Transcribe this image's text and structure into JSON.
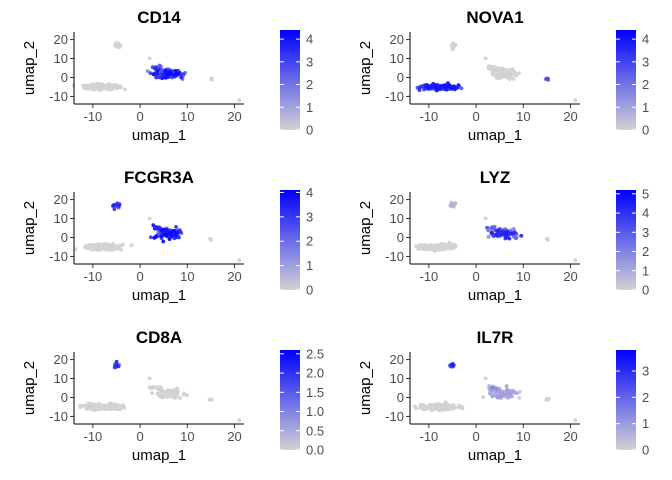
{
  "figure": {
    "panels": [
      {
        "gene": "CD14",
        "xlabel": "umap_1",
        "ylabel": "umap_2",
        "legend_ticks": [
          "0",
          "1",
          "2",
          "3",
          "4"
        ]
      },
      {
        "gene": "NOVA1",
        "xlabel": "umap_1",
        "ylabel": "umap_2",
        "legend_ticks": [
          "0",
          "1",
          "2",
          "3",
          "4"
        ]
      },
      {
        "gene": "FCGR3A",
        "xlabel": "umap_1",
        "ylabel": "umap_2",
        "legend_ticks": [
          "0",
          "1",
          "2",
          "3",
          "4"
        ]
      },
      {
        "gene": "LYZ",
        "xlabel": "umap_1",
        "ylabel": "umap_2",
        "legend_ticks": [
          "0",
          "1",
          "2",
          "3",
          "4",
          "5"
        ]
      },
      {
        "gene": "CD8A",
        "xlabel": "umap_1",
        "ylabel": "umap_2",
        "legend_ticks": [
          "0.0",
          "0.5",
          "1.0",
          "1.5",
          "2.0",
          "2.5"
        ]
      },
      {
        "gene": "IL7R",
        "xlabel": "umap_1",
        "ylabel": "umap_2",
        "legend_ticks": [
          "0",
          "1",
          "2",
          "3"
        ]
      }
    ]
  },
  "chart_data": [
    {
      "type": "scatter",
      "title": "CD14",
      "xlabel": "umap_1",
      "ylabel": "umap_2",
      "xticks": [
        -10,
        0,
        10,
        20
      ],
      "yticks": [
        -10,
        0,
        10,
        20
      ],
      "xlim": [
        -14,
        22
      ],
      "ylim": [
        -14,
        24
      ],
      "color_scale": {
        "low": "#d3d3d3",
        "high": "#0000ff",
        "min": 0,
        "max": 4.4,
        "ticks": [
          0,
          1,
          2,
          3,
          4
        ]
      },
      "clusters": [
        {
          "x": -8,
          "y": -5,
          "sx": 3.2,
          "sy": 1.2,
          "n": 220,
          "expression": [
            0,
            0
          ]
        },
        {
          "x": -5,
          "y": 17,
          "sx": 0.6,
          "sy": 1.3,
          "n": 14,
          "expression": [
            0,
            0
          ]
        },
        {
          "x": 6,
          "y": 2,
          "sx": 2.4,
          "sy": 2.0,
          "n": 110,
          "expression": [
            1.5,
            4.2
          ]
        },
        {
          "x": 3.5,
          "y": 5,
          "sx": 1.0,
          "sy": 0.8,
          "n": 16,
          "expression": [
            2.0,
            3.5
          ]
        },
        {
          "x": 15,
          "y": -1,
          "sx": 0.3,
          "sy": 0.5,
          "n": 5,
          "expression": [
            0,
            0
          ]
        }
      ],
      "outliers": [
        {
          "x": 2,
          "y": 10
        },
        {
          "x": 21,
          "y": -12
        }
      ]
    },
    {
      "type": "scatter",
      "title": "NOVA1",
      "xlabel": "umap_1",
      "ylabel": "umap_2",
      "xticks": [
        -10,
        0,
        10,
        20
      ],
      "yticks": [
        -10,
        0,
        10,
        20
      ],
      "xlim": [
        -14,
        22
      ],
      "ylim": [
        -14,
        24
      ],
      "color_scale": {
        "low": "#d3d3d3",
        "high": "#0000ff",
        "min": 0,
        "max": 4.4,
        "ticks": [
          0,
          1,
          2,
          3,
          4
        ]
      },
      "clusters": [
        {
          "x": -8,
          "y": -5,
          "sx": 3.2,
          "sy": 1.2,
          "n": 220,
          "expression": [
            2.0,
            4.0
          ]
        },
        {
          "x": -5,
          "y": 17,
          "sx": 0.6,
          "sy": 1.3,
          "n": 14,
          "expression": [
            0,
            0
          ]
        },
        {
          "x": 6,
          "y": 2,
          "sx": 2.4,
          "sy": 2.0,
          "n": 110,
          "expression": [
            0,
            0
          ]
        },
        {
          "x": 3.5,
          "y": 5,
          "sx": 1.0,
          "sy": 0.8,
          "n": 16,
          "expression": [
            0,
            0
          ]
        },
        {
          "x": 15,
          "y": -1,
          "sx": 0.3,
          "sy": 0.5,
          "n": 5,
          "expression": [
            1.5,
            3.0
          ]
        }
      ],
      "outliers": [
        {
          "x": 2,
          "y": 10
        },
        {
          "x": 21,
          "y": -12
        }
      ]
    },
    {
      "type": "scatter",
      "title": "FCGR3A",
      "xlabel": "umap_1",
      "ylabel": "umap_2",
      "xticks": [
        -10,
        0,
        10,
        20
      ],
      "yticks": [
        -10,
        0,
        10,
        20
      ],
      "xlim": [
        -14,
        22
      ],
      "ylim": [
        -14,
        24
      ],
      "color_scale": {
        "low": "#d3d3d3",
        "high": "#0000ff",
        "min": 0,
        "max": 4.1,
        "ticks": [
          0,
          1,
          2,
          3,
          4
        ]
      },
      "clusters": [
        {
          "x": -8,
          "y": -5,
          "sx": 3.2,
          "sy": 1.2,
          "n": 220,
          "expression": [
            0,
            0
          ]
        },
        {
          "x": -5,
          "y": 17,
          "sx": 0.6,
          "sy": 1.3,
          "n": 14,
          "expression": [
            1.5,
            3.5
          ]
        },
        {
          "x": 6,
          "y": 2,
          "sx": 2.4,
          "sy": 2.0,
          "n": 110,
          "expression": [
            1.5,
            4.0
          ]
        },
        {
          "x": 3.5,
          "y": 5,
          "sx": 1.0,
          "sy": 0.8,
          "n": 16,
          "expression": [
            2.0,
            3.5
          ]
        },
        {
          "x": 15,
          "y": -1,
          "sx": 0.3,
          "sy": 0.5,
          "n": 5,
          "expression": [
            0,
            0
          ]
        }
      ],
      "outliers": [
        {
          "x": 2,
          "y": 10
        },
        {
          "x": 21,
          "y": -12
        }
      ]
    },
    {
      "type": "scatter",
      "title": "LYZ",
      "xlabel": "umap_1",
      "ylabel": "umap_2",
      "xticks": [
        -10,
        0,
        10,
        20
      ],
      "yticks": [
        -10,
        0,
        10,
        20
      ],
      "xlim": [
        -14,
        22
      ],
      "ylim": [
        -14,
        24
      ],
      "color_scale": {
        "low": "#d3d3d3",
        "high": "#0000ff",
        "min": 0,
        "max": 5.2,
        "ticks": [
          0,
          1,
          2,
          3,
          4,
          5
        ]
      },
      "clusters": [
        {
          "x": -8,
          "y": -5,
          "sx": 3.2,
          "sy": 1.2,
          "n": 220,
          "expression": [
            0,
            0
          ]
        },
        {
          "x": -5,
          "y": 17,
          "sx": 0.6,
          "sy": 1.3,
          "n": 14,
          "expression": [
            0,
            1.0
          ]
        },
        {
          "x": 6,
          "y": 2,
          "sx": 2.4,
          "sy": 2.0,
          "n": 110,
          "expression": [
            0.5,
            4.5
          ]
        },
        {
          "x": 3.5,
          "y": 5,
          "sx": 1.0,
          "sy": 0.8,
          "n": 16,
          "expression": [
            1.0,
            3.0
          ]
        },
        {
          "x": 15,
          "y": -1,
          "sx": 0.3,
          "sy": 0.5,
          "n": 5,
          "expression": [
            0,
            0
          ]
        }
      ],
      "outliers": [
        {
          "x": 2,
          "y": 10
        },
        {
          "x": 21,
          "y": -12
        }
      ]
    },
    {
      "type": "scatter",
      "title": "CD8A",
      "xlabel": "umap_1",
      "ylabel": "umap_2",
      "xticks": [
        -10,
        0,
        10,
        20
      ],
      "yticks": [
        -10,
        0,
        10,
        20
      ],
      "xlim": [
        -14,
        22
      ],
      "ylim": [
        -14,
        24
      ],
      "color_scale": {
        "low": "#d3d3d3",
        "high": "#0000ff",
        "min": 0,
        "max": 2.6,
        "ticks": [
          0,
          0.5,
          1.0,
          1.5,
          2.0,
          2.5
        ]
      },
      "clusters": [
        {
          "x": -8,
          "y": -5,
          "sx": 3.2,
          "sy": 1.2,
          "n": 220,
          "expression": [
            0,
            0
          ]
        },
        {
          "x": -5,
          "y": 17,
          "sx": 0.6,
          "sy": 1.3,
          "n": 14,
          "expression": [
            1.0,
            2.5
          ]
        },
        {
          "x": 6,
          "y": 2,
          "sx": 2.4,
          "sy": 2.0,
          "n": 110,
          "expression": [
            0,
            0
          ]
        },
        {
          "x": 3.5,
          "y": 5,
          "sx": 1.0,
          "sy": 0.8,
          "n": 16,
          "expression": [
            0,
            0
          ]
        },
        {
          "x": 15,
          "y": -1,
          "sx": 0.3,
          "sy": 0.5,
          "n": 5,
          "expression": [
            0,
            0
          ]
        }
      ],
      "outliers": [
        {
          "x": 2,
          "y": 10
        },
        {
          "x": 21,
          "y": -12
        }
      ]
    },
    {
      "type": "scatter",
      "title": "IL7R",
      "xlabel": "umap_1",
      "ylabel": "umap_2",
      "xticks": [
        -10,
        0,
        10,
        20
      ],
      "yticks": [
        -10,
        0,
        10,
        20
      ],
      "xlim": [
        -14,
        22
      ],
      "ylim": [
        -14,
        24
      ],
      "color_scale": {
        "low": "#d3d3d3",
        "high": "#0000ff",
        "min": 0,
        "max": 3.8,
        "ticks": [
          0,
          1,
          2,
          3
        ]
      },
      "clusters": [
        {
          "x": -8,
          "y": -5,
          "sx": 3.2,
          "sy": 1.2,
          "n": 220,
          "expression": [
            0,
            0
          ]
        },
        {
          "x": -5,
          "y": 17,
          "sx": 0.6,
          "sy": 1.3,
          "n": 14,
          "expression": [
            1.5,
            3.5
          ]
        },
        {
          "x": 6,
          "y": 2,
          "sx": 2.4,
          "sy": 2.0,
          "n": 110,
          "expression": [
            0,
            1.0
          ]
        },
        {
          "x": 3.5,
          "y": 5,
          "sx": 1.0,
          "sy": 0.8,
          "n": 16,
          "expression": [
            0,
            1.5
          ]
        },
        {
          "x": 15,
          "y": -1,
          "sx": 0.3,
          "sy": 0.5,
          "n": 5,
          "expression": [
            0,
            0
          ]
        }
      ],
      "outliers": [
        {
          "x": 2,
          "y": 10
        },
        {
          "x": 21,
          "y": -12
        }
      ]
    }
  ]
}
